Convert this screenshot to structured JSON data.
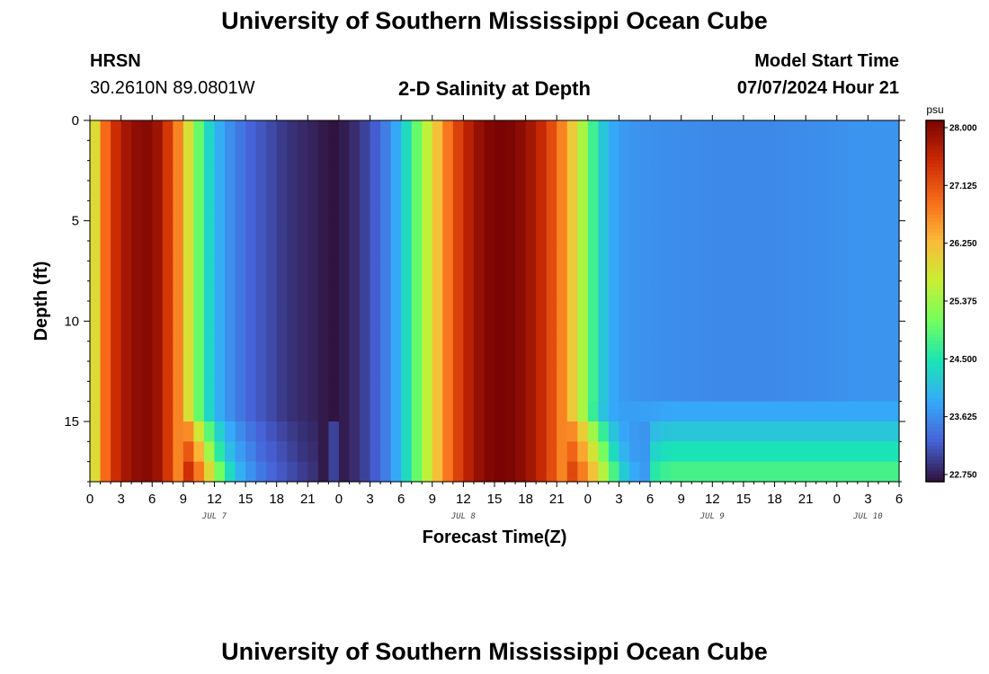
{
  "page": {
    "title": "University of Southern Mississippi Ocean Cube",
    "title_repeat": "University of Southern Mississippi Ocean Cube",
    "station": "HRSN",
    "coordinates": "30.2610N  89.0801W",
    "plot_title": "2-D Salinity at Depth",
    "model_start_label": "Model Start Time",
    "model_start_value": "07/07/2024 Hour 21"
  },
  "chart_data": {
    "type": "heatmap",
    "xlabel": "Forecast Time(Z)",
    "ylabel": "Depth (ft)",
    "x_tick_labels": [
      "0",
      "3",
      "6",
      "9",
      "12",
      "15",
      "18",
      "21",
      "0",
      "3",
      "6",
      "9",
      "12",
      "15",
      "18",
      "21",
      "0",
      "3",
      "6",
      "9",
      "12",
      "15",
      "18",
      "21",
      "0",
      "3",
      "6"
    ],
    "y_tick_labels": [
      "0",
      "5",
      "10",
      "15"
    ],
    "date_labels": [
      {
        "label": "JUL 7",
        "hour": 12
      },
      {
        "label": "JUL 8",
        "hour": 36
      },
      {
        "label": "JUL 9",
        "hour": 60
      },
      {
        "label": "JUL 10",
        "hour": 75
      }
    ],
    "xlim": [
      0,
      78
    ],
    "ylim": [
      0,
      18
    ],
    "colorbar": {
      "unit": "psu",
      "min": 22.75,
      "max": 28.0,
      "tick_labels": [
        "28.000",
        "27.125",
        "26.250",
        "25.375",
        "24.500",
        "23.625",
        "22.750"
      ],
      "colormap": [
        "#30123b",
        "#4662d7",
        "#36aaf9",
        "#1ae4b6",
        "#72fe5e",
        "#c8ef34",
        "#faba39",
        "#f66b19",
        "#ca2a04",
        "#7a0403"
      ]
    },
    "surface_salinity_by_hour": [
      [
        0,
        25.3
      ],
      [
        1,
        26.5
      ],
      [
        2,
        27.2
      ],
      [
        3,
        27.6
      ],
      [
        4,
        27.8
      ],
      [
        5,
        27.9
      ],
      [
        6,
        27.9
      ],
      [
        7,
        27.6
      ],
      [
        8,
        27.0
      ],
      [
        9,
        26.3
      ],
      [
        10,
        25.4
      ],
      [
        11,
        24.6
      ],
      [
        12,
        24.1
      ],
      [
        13,
        23.8
      ],
      [
        14,
        23.6
      ],
      [
        15,
        23.4
      ],
      [
        16,
        23.3
      ],
      [
        17,
        23.2
      ],
      [
        18,
        23.1
      ],
      [
        19,
        23.0
      ],
      [
        20,
        22.95
      ],
      [
        21,
        22.9
      ],
      [
        22,
        22.85
      ],
      [
        23,
        22.76
      ],
      [
        24,
        22.76
      ],
      [
        25,
        22.9
      ],
      [
        26,
        23.0
      ],
      [
        27,
        23.2
      ],
      [
        28,
        23.4
      ],
      [
        29,
        23.7
      ],
      [
        30,
        24.1
      ],
      [
        31,
        24.7
      ],
      [
        32,
        25.3
      ],
      [
        33,
        25.9
      ],
      [
        34,
        26.5
      ],
      [
        35,
        27.0
      ],
      [
        36,
        27.4
      ],
      [
        37,
        27.7
      ],
      [
        38,
        27.9
      ],
      [
        39,
        28.0
      ],
      [
        40,
        28.0
      ],
      [
        41,
        27.95
      ],
      [
        42,
        27.8
      ],
      [
        43,
        27.6
      ],
      [
        44,
        27.3
      ],
      [
        45,
        26.9
      ],
      [
        46,
        26.4
      ],
      [
        47,
        25.8
      ],
      [
        48,
        25.1
      ],
      [
        49,
        24.4
      ],
      [
        50,
        24.0
      ],
      [
        51,
        23.8
      ],
      [
        54,
        23.7
      ],
      [
        60,
        23.65
      ],
      [
        66,
        23.65
      ],
      [
        72,
        23.7
      ],
      [
        74,
        23.75
      ],
      [
        76,
        23.75
      ],
      [
        78,
        23.75
      ]
    ],
    "deep_layer_values": {
      "depth_15_ft_late": 23.9,
      "depth_16_ft_late": 24.2,
      "depth_17_ft_late": 24.5,
      "depth_18_ft_late": 24.8
    },
    "grid": false
  }
}
